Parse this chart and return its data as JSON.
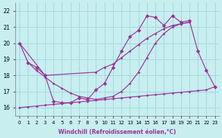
{
  "background_color": "#c8eef0",
  "grid_color": "#a0d8dc",
  "line_color": "#993399",
  "xlabel": "Windchill (Refroidissement éolien,°C)",
  "x": [
    0,
    1,
    2,
    3,
    4,
    5,
    6,
    7,
    8,
    9,
    10,
    11,
    12,
    13,
    14,
    15,
    16,
    17,
    18,
    19,
    20,
    21,
    22,
    23
  ],
  "ylim": [
    15.5,
    22.5
  ],
  "xlim": [
    -0.5,
    23.5
  ],
  "yticks": [
    16,
    17,
    18,
    19,
    20,
    21,
    22
  ],
  "line1_x": [
    0,
    1,
    2,
    3,
    4,
    5,
    6,
    7,
    8,
    9,
    10,
    11,
    12,
    13,
    14,
    15,
    16,
    17,
    18,
    19,
    20,
    21,
    22,
    23
  ],
  "line1_y": [
    20.0,
    18.8,
    18.5,
    18.0,
    16.4,
    16.3,
    16.3,
    16.6,
    16.5,
    17.1,
    17.5,
    18.5,
    19.5,
    20.4,
    20.8,
    21.7,
    21.6,
    21.1,
    21.7,
    21.3,
    21.4,
    19.5,
    18.3,
    17.3
  ],
  "line2_x": [
    0,
    3,
    9,
    10,
    11,
    12,
    13,
    14,
    15,
    16,
    17,
    18,
    19,
    20
  ],
  "line2_y": [
    20.0,
    18.0,
    18.2,
    18.5,
    18.7,
    19.1,
    19.5,
    19.9,
    20.3,
    20.6,
    20.9,
    21.1,
    21.2,
    21.3
  ],
  "line3_x": [
    1,
    2,
    3,
    4,
    5,
    6,
    7,
    8,
    9,
    10,
    11,
    12,
    13,
    14,
    15,
    16,
    17,
    18,
    19,
    20
  ],
  "line3_y": [
    18.8,
    18.3,
    17.9,
    17.5,
    17.2,
    16.9,
    16.7,
    16.6,
    16.5,
    16.6,
    16.7,
    17.0,
    17.5,
    18.2,
    19.1,
    20.0,
    20.6,
    21.0,
    21.2,
    21.3
  ],
  "line4_x": [
    0,
    1,
    2,
    3,
    4,
    5,
    6,
    7,
    8,
    9,
    10,
    11,
    12,
    13,
    14,
    15,
    16,
    17,
    18,
    19,
    20,
    21,
    22,
    23
  ],
  "line4_y": [
    16.0,
    16.05,
    16.1,
    16.15,
    16.2,
    16.25,
    16.3,
    16.35,
    16.4,
    16.45,
    16.5,
    16.55,
    16.6,
    16.65,
    16.7,
    16.75,
    16.8,
    16.85,
    16.9,
    16.95,
    17.0,
    17.05,
    17.1,
    17.3
  ]
}
